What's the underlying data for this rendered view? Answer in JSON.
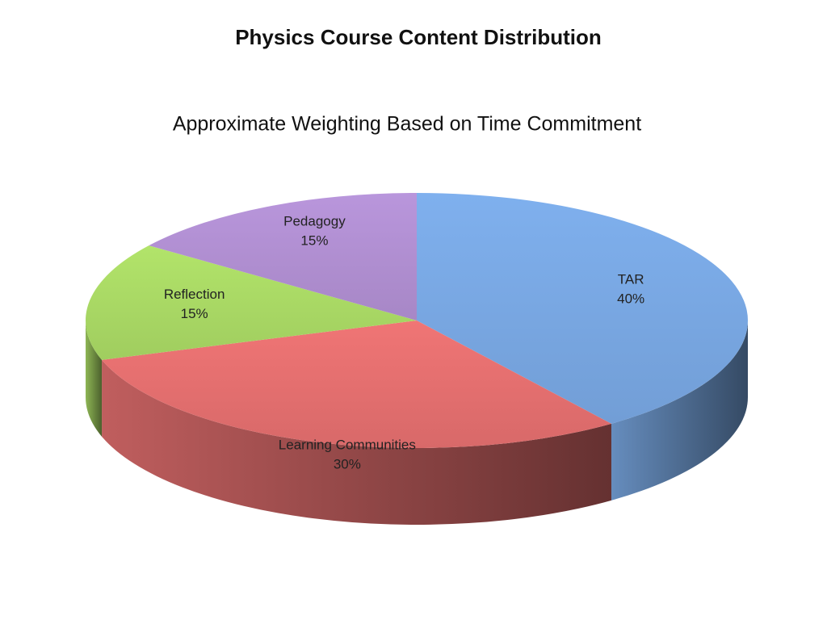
{
  "chart_data": {
    "type": "pie3d",
    "title": "Physics Course Content Distribution",
    "subtitle": "Approximate Weighting Based on Time Commitment",
    "categories": [
      "TAR",
      "Learning Communities",
      "Reflection",
      "Pedagogy"
    ],
    "values": [
      40,
      30,
      15,
      15
    ],
    "value_labels": [
      "40%",
      "30%",
      "15%",
      "15%"
    ],
    "colors": [
      "#7fb0ee",
      "#f07575",
      "#b2e46a",
      "#b996dc"
    ]
  }
}
